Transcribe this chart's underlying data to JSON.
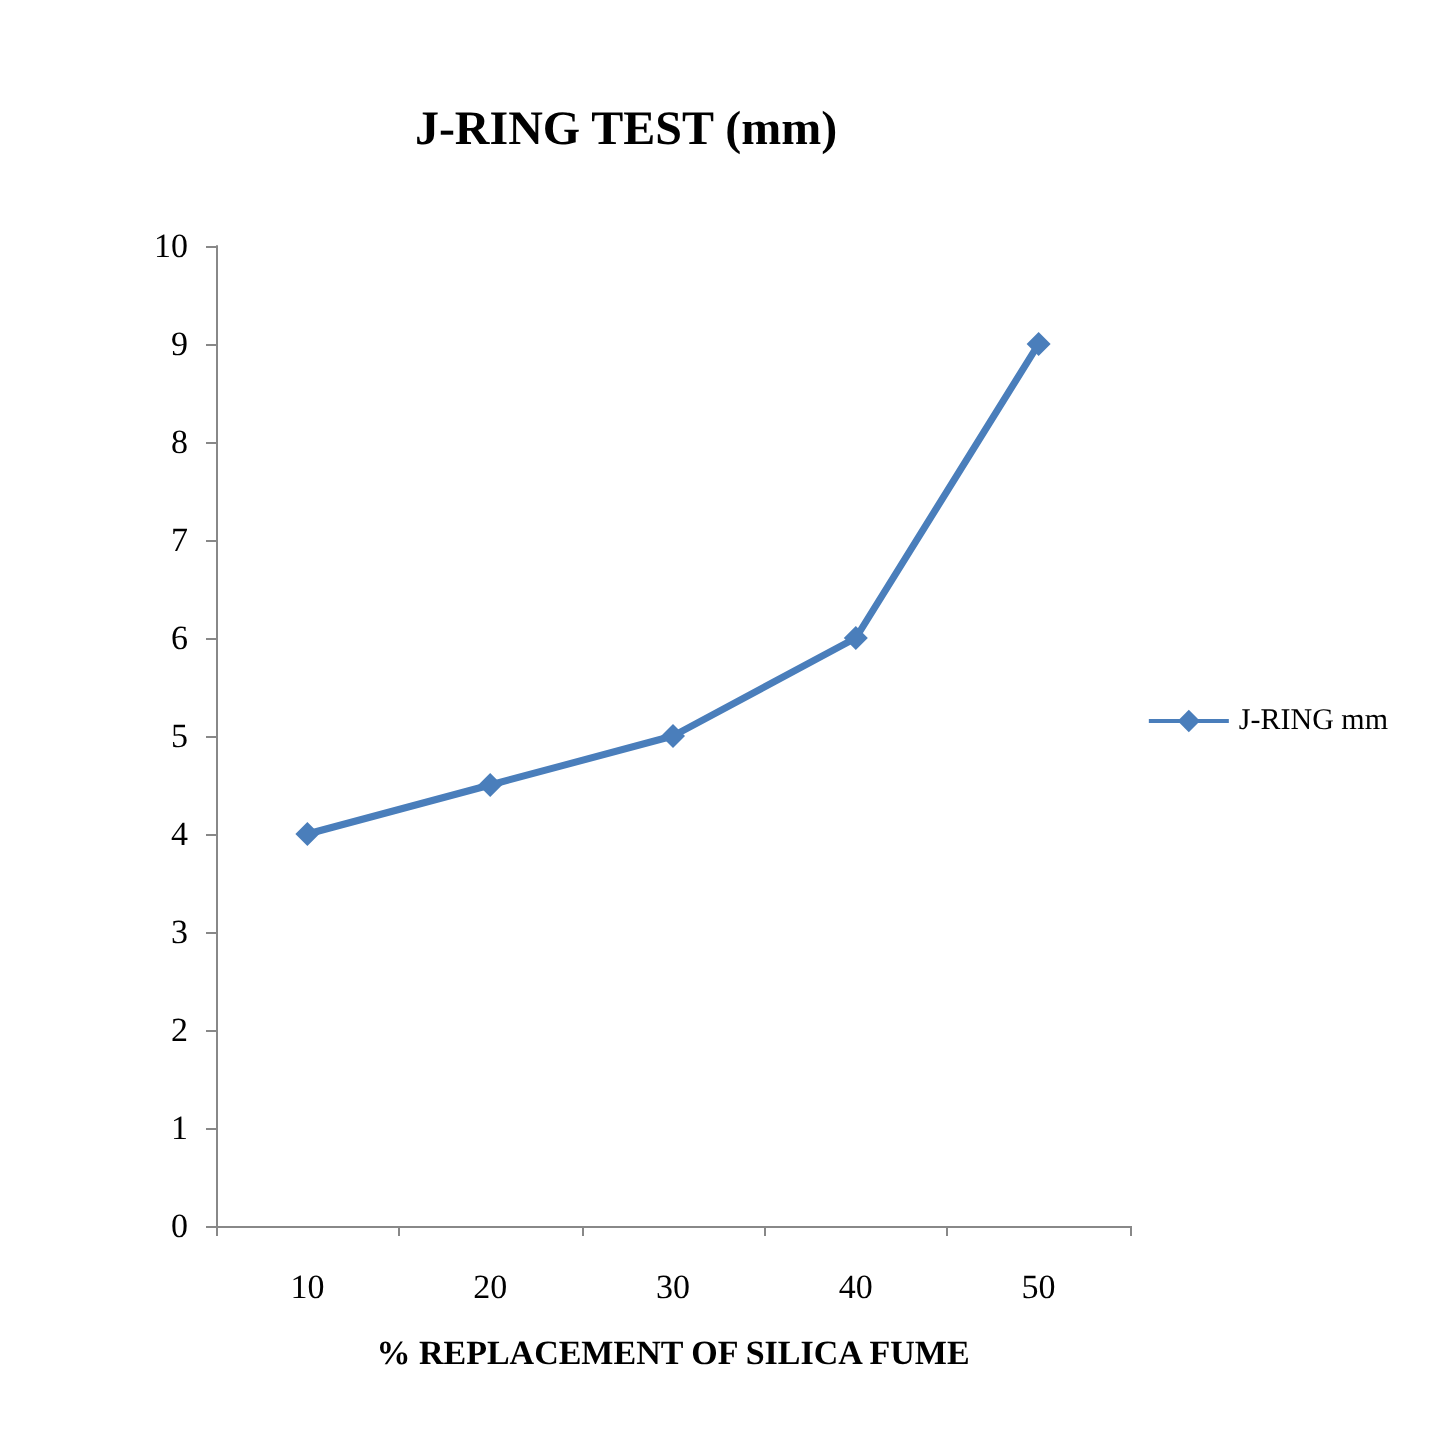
{
  "chart_data": {
    "type": "line",
    "title": "J-RING TEST (mm)",
    "xlabel": "% REPLACEMENT OF SILICA FUME",
    "categories": [
      "10",
      "20",
      "30",
      "40",
      "50"
    ],
    "series": [
      {
        "name": "J-RING mm",
        "color": "#4a7ebb",
        "values": [
          4,
          4.5,
          5,
          6,
          9
        ]
      }
    ],
    "ylim": [
      0,
      10
    ],
    "yticks": [
      0,
      1,
      2,
      3,
      4,
      5,
      6,
      7,
      8,
      9,
      10
    ],
    "grid": false,
    "legend": "right",
    "marker": "diamond",
    "line_style": "solid"
  }
}
